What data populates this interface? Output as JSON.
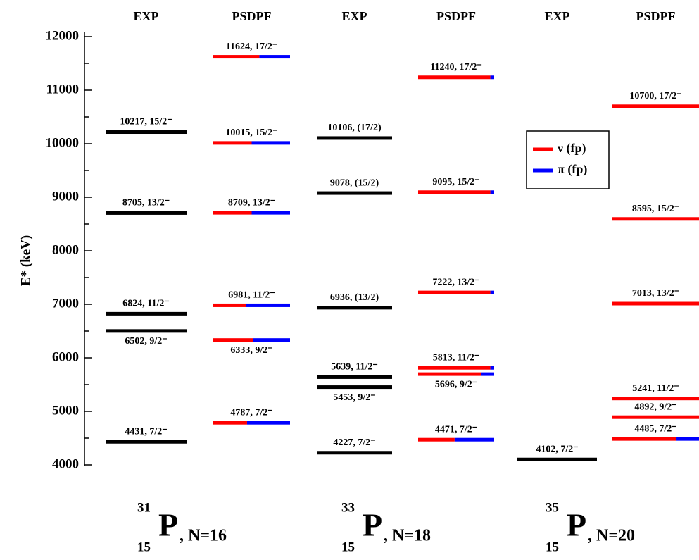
{
  "chart_data": {
    "type": "level-scheme",
    "y_label": "E* (keV)",
    "ylim": [
      4000,
      12000
    ],
    "yticks": [
      4000,
      5000,
      6000,
      7000,
      8000,
      9000,
      10000,
      11000,
      12000
    ],
    "minor_yticks": [
      4500,
      5500,
      6500,
      7500,
      8500,
      9500,
      10500,
      11500
    ],
    "exp_color": "#000000",
    "legend": [
      {
        "name": "ν (fp)",
        "color": "#ff0000"
      },
      {
        "name": "π (fp)",
        "color": "#0000ff"
      }
    ],
    "series": [
      {
        "name": "EXP",
        "values": [
          4431,
          6502,
          6824,
          8705,
          10217
        ],
        "value_labels": [
          "4431, 7/2⁻",
          "6502, 9/2⁻",
          "6824, 11/2⁻",
          "8705, 13/2⁻",
          "10217, 15/2⁻"
        ]
      },
      {
        "name": "PSDPF",
        "values": [
          4787,
          6333,
          6981,
          8709,
          10015,
          11624
        ],
        "value_labels": [
          "4787, 7/2⁻",
          "6333, 9/2⁻",
          "6981, 11/2⁻",
          "8709, 13/2⁻",
          "10015, 15/2⁻",
          "11624, 17/2⁻"
        ],
        "nu_fraction": [
          0.44,
          0.52,
          0.43,
          0.5,
          0.5,
          0.6
        ]
      },
      {
        "name": "EXP",
        "values": [
          4227,
          5453,
          5639,
          6936,
          9078,
          10106
        ],
        "value_labels": [
          "4227, 7/2⁻",
          "5453, 9/2⁻",
          "5639, 11/2⁻",
          "6936, (13/2)",
          "9078, (15/2)",
          "10106, (17/2)"
        ]
      },
      {
        "name": "PSDPF",
        "values": [
          4471,
          5696,
          5813,
          7222,
          9095,
          11240
        ],
        "value_labels": [
          "4471, 7/2⁻",
          "5696, 9/2⁻",
          "5813, 11/2⁻",
          "7222, 13/2⁻",
          "9095, 15/2⁻",
          "11240, 17/2⁻"
        ],
        "nu_fraction": [
          0.48,
          0.83,
          0.95,
          0.95,
          0.95,
          0.95
        ]
      },
      {
        "name": "EXP",
        "values": [
          4102
        ],
        "value_labels": [
          "4102, 7/2⁻"
        ]
      },
      {
        "name": "PSDPF",
        "values": [
          4485,
          4892,
          5241,
          7013,
          8595,
          10700
        ],
        "value_labels": [
          "4485, 7/2⁻",
          "4892, 9/2⁻",
          "5241, 11/2⁻",
          "7013, 13/2⁻",
          "8595, 15/2⁻",
          "10700, 17/2⁻"
        ],
        "nu_fraction": [
          0.74,
          1,
          1,
          1,
          1,
          1
        ]
      }
    ],
    "nuclei": [
      {
        "mass": "31",
        "z": "15",
        "symbol": "P",
        "n": ", N=16"
      },
      {
        "mass": "33",
        "z": "15",
        "symbol": "P",
        "n": ", N=18"
      },
      {
        "mass": "35",
        "z": "15",
        "symbol": "P",
        "n": ", N=20"
      }
    ]
  }
}
